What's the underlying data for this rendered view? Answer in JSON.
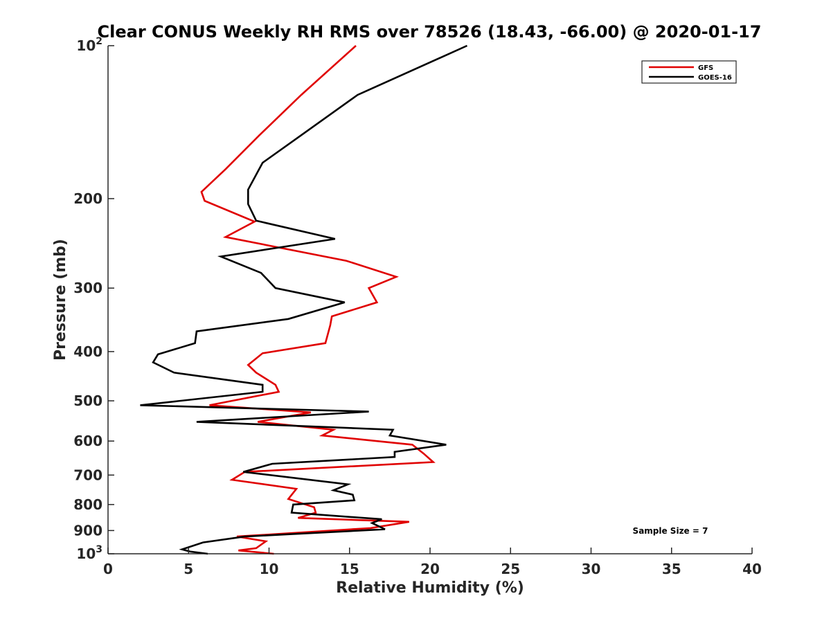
{
  "chart_data": {
    "type": "line",
    "title": "Clear CONUS Weekly RH RMS over 78526 (18.43, -66.00) @ 2020-01-17",
    "xlabel": "Relative Humidity (%)",
    "ylabel": "Pressure (mb)",
    "xlim": [
      0,
      40
    ],
    "ylim": [
      100,
      1000
    ],
    "y_scale": "log",
    "y_reversed": true,
    "x_ticks": [
      "0",
      "5",
      "10",
      "15",
      "20",
      "25",
      "30",
      "35",
      "40"
    ],
    "y_ticks": [
      {
        "value": 100,
        "base": "10",
        "exp": "2"
      },
      {
        "value": 200,
        "label": "200"
      },
      {
        "value": 300,
        "label": "300"
      },
      {
        "value": 400,
        "label": "400"
      },
      {
        "value": 500,
        "label": "500"
      },
      {
        "value": 600,
        "label": "600"
      },
      {
        "value": 700,
        "label": "700"
      },
      {
        "value": 800,
        "label": "800"
      },
      {
        "value": 900,
        "label": "900"
      },
      {
        "value": 1000,
        "base": "10",
        "exp": "3"
      }
    ],
    "legend_position": "top-right",
    "grid": false,
    "annotation": "Sample Size = 7",
    "series": [
      {
        "name": "GFS",
        "color": "#e00000",
        "points": [
          [
            15.4,
            100
          ],
          [
            12.0,
            125
          ],
          [
            9.4,
            150
          ],
          [
            7.3,
            175
          ],
          [
            5.8,
            194
          ],
          [
            6.0,
            202
          ],
          [
            9.1,
            222
          ],
          [
            7.3,
            238
          ],
          [
            14.8,
            265
          ],
          [
            17.9,
            285
          ],
          [
            16.2,
            300
          ],
          [
            16.7,
            320
          ],
          [
            13.9,
            341
          ],
          [
            13.8,
            355
          ],
          [
            13.5,
            385
          ],
          [
            9.6,
            403
          ],
          [
            8.7,
            425
          ],
          [
            9.2,
            440
          ],
          [
            10.4,
            465
          ],
          [
            10.6,
            480
          ],
          [
            6.3,
            510
          ],
          [
            12.6,
            527
          ],
          [
            9.3,
            550
          ],
          [
            14.0,
            570
          ],
          [
            13.3,
            585
          ],
          [
            18.9,
            610
          ],
          [
            19.6,
            635
          ],
          [
            20.2,
            660
          ],
          [
            8.5,
            690
          ],
          [
            7.7,
            715
          ],
          [
            11.7,
            745
          ],
          [
            11.2,
            780
          ],
          [
            12.8,
            810
          ],
          [
            12.9,
            830
          ],
          [
            11.8,
            850
          ],
          [
            18.7,
            865
          ],
          [
            16.3,
            890
          ],
          [
            8.0,
            925
          ],
          [
            9.8,
            945
          ],
          [
            9.2,
            975
          ],
          [
            8.1,
            985
          ],
          [
            10.3,
            1000
          ]
        ]
      },
      {
        "name": "GOES-16",
        "color": "#000000",
        "points": [
          [
            22.3,
            100
          ],
          [
            15.5,
            125
          ],
          [
            12.0,
            150
          ],
          [
            9.6,
            170
          ],
          [
            8.7,
            192
          ],
          [
            8.7,
            205
          ],
          [
            9.2,
            221
          ],
          [
            14.1,
            240
          ],
          [
            7.0,
            260
          ],
          [
            9.5,
            280
          ],
          [
            10.4,
            300
          ],
          [
            14.7,
            320
          ],
          [
            11.2,
            345
          ],
          [
            5.5,
            365
          ],
          [
            5.4,
            385
          ],
          [
            3.1,
            405
          ],
          [
            2.8,
            420
          ],
          [
            4.1,
            440
          ],
          [
            9.6,
            465
          ],
          [
            9.6,
            480
          ],
          [
            2.0,
            510
          ],
          [
            16.2,
            525
          ],
          [
            5.5,
            550
          ],
          [
            17.7,
            570
          ],
          [
            17.5,
            585
          ],
          [
            21.0,
            610
          ],
          [
            17.8,
            630
          ],
          [
            17.8,
            645
          ],
          [
            10.2,
            665
          ],
          [
            8.4,
            690
          ],
          [
            14.9,
            730
          ],
          [
            14.0,
            750
          ],
          [
            15.2,
            765
          ],
          [
            15.3,
            785
          ],
          [
            11.5,
            800
          ],
          [
            11.4,
            830
          ],
          [
            17.0,
            855
          ],
          [
            16.4,
            870
          ],
          [
            17.2,
            895
          ],
          [
            11.3,
            915
          ],
          [
            8.5,
            925
          ],
          [
            5.9,
            950
          ],
          [
            4.6,
            980
          ],
          [
            5.1,
            990
          ],
          [
            6.2,
            1000
          ]
        ]
      }
    ]
  }
}
